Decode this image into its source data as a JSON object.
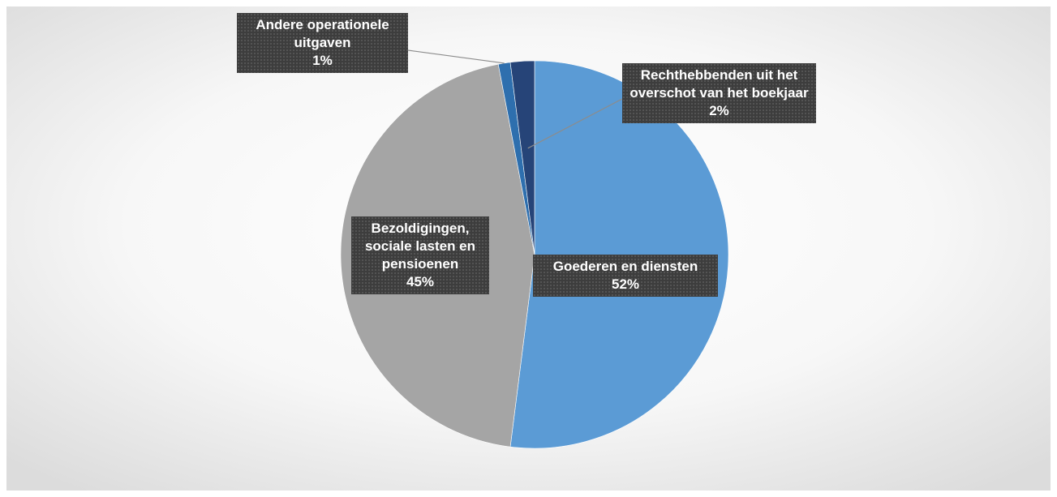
{
  "chart_data": {
    "type": "pie",
    "categories": [
      "Goederen en diensten",
      "Bezoldigingen, sociale lasten en pensioenen",
      "Andere operationele uitgaven",
      "Rechthebbenden uit het overschot van het boekjaar"
    ],
    "values": [
      52,
      45,
      1,
      2
    ],
    "value_labels": [
      "52%",
      "45%",
      "1%",
      "2%"
    ],
    "colors": [
      "#5b9bd5",
      "#a5a5a5",
      "#2e6fae",
      "#264478"
    ]
  }
}
